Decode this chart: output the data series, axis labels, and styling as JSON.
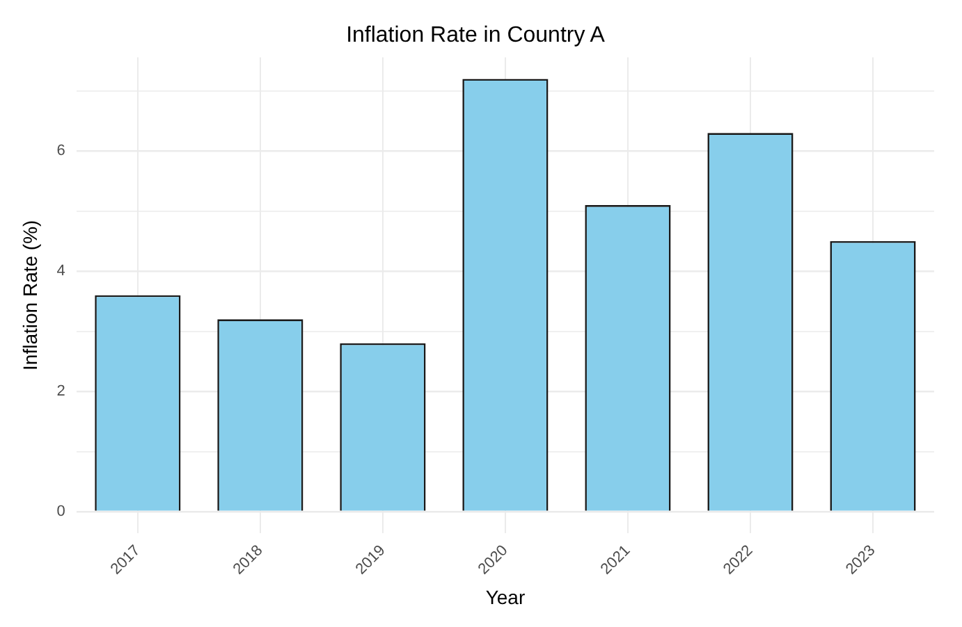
{
  "chart_data": {
    "type": "bar",
    "title": "Inflation Rate in Country A",
    "xlabel": "Year",
    "ylabel": "Inflation Rate (%)",
    "categories": [
      "2017",
      "2018",
      "2019",
      "2020",
      "2021",
      "2022",
      "2023"
    ],
    "values": [
      3.6,
      3.2,
      2.8,
      7.2,
      5.1,
      6.3,
      4.5
    ],
    "color": "#87ceeb",
    "ylim": [
      -0.36,
      7.56
    ],
    "yticks": [
      0,
      {
        "value": 1,
        "label": null
      },
      2,
      {
        "value": 3,
        "label": null
      },
      4,
      {
        "value": 5,
        "label": null
      },
      6,
      {
        "value": 7,
        "label": null
      }
    ],
    "grid": true,
    "legend": false
  }
}
